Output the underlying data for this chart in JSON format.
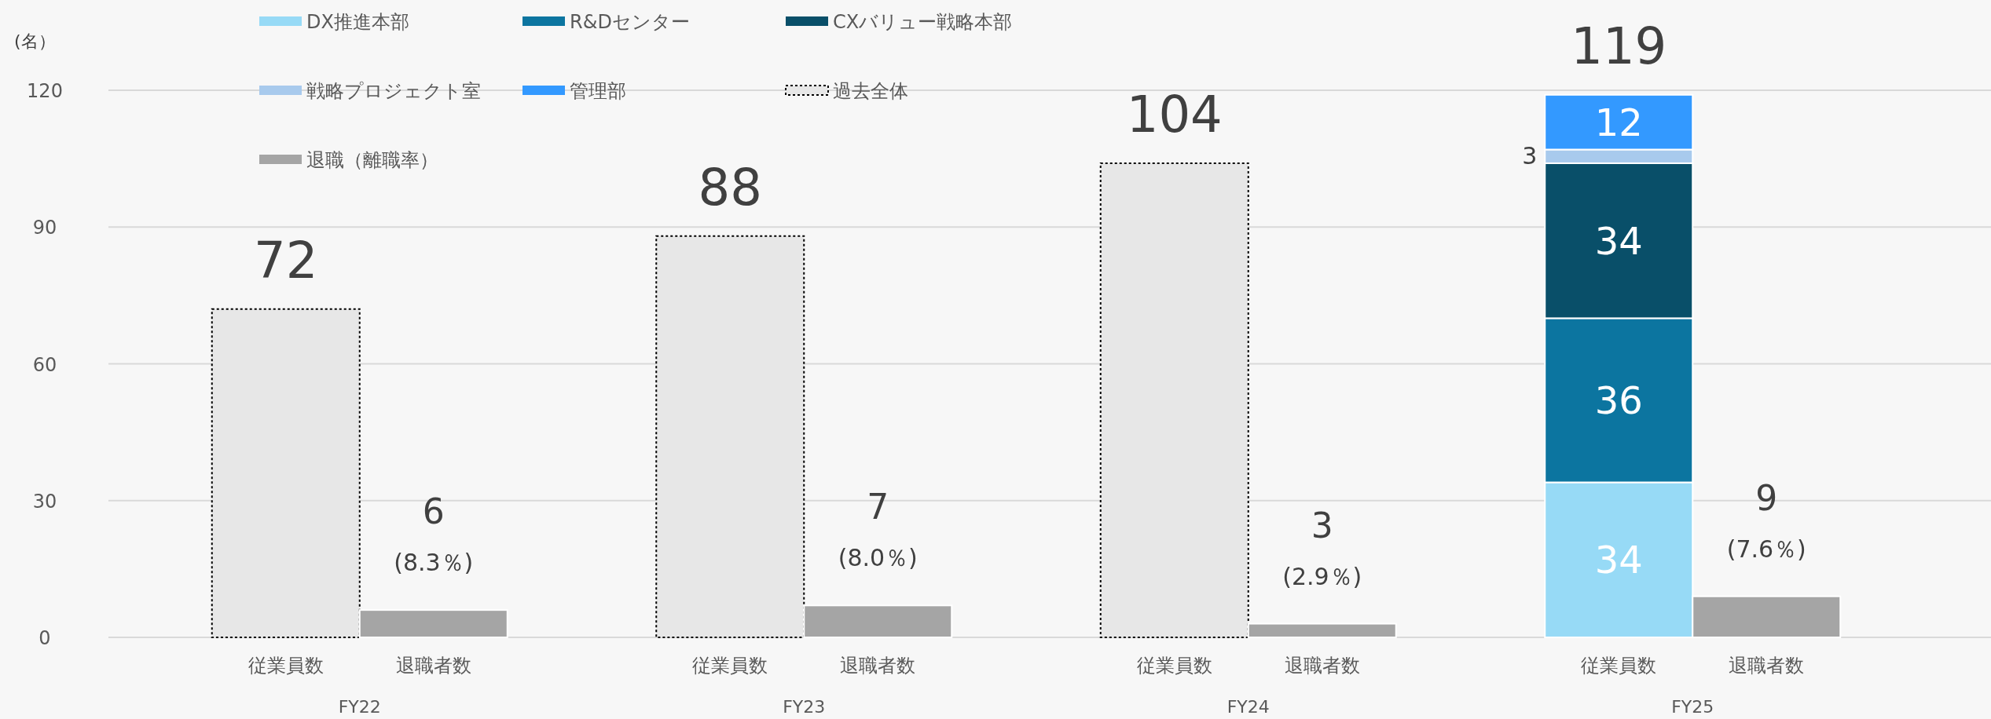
{
  "chart_data": {
    "type": "bar",
    "stacked": true,
    "ylabel": "(名）",
    "categories": [
      "従業員数",
      "退職者数",
      "従業員数",
      "退職者数",
      "従業員数",
      "退職者数",
      "従業員数",
      "退職者数"
    ],
    "series": [
      {
        "name": "DX推進本部",
        "color": "#97daf6",
        "values": [
          null,
          null,
          null,
          null,
          null,
          null,
          34,
          null
        ],
        "value_labels": [
          null,
          null,
          null,
          null,
          null,
          null,
          "34",
          null
        ]
      },
      {
        "name": "R&Dセンター",
        "color": "#0c75a0",
        "values": [
          null,
          null,
          null,
          null,
          null,
          null,
          36,
          null
        ],
        "value_labels": [
          null,
          null,
          null,
          null,
          null,
          null,
          "36",
          null
        ]
      },
      {
        "name": "CXバリュー戦略本部",
        "color": "#094f69",
        "values": [
          null,
          null,
          null,
          null,
          null,
          null,
          34,
          null
        ],
        "value_labels": [
          null,
          null,
          null,
          null,
          null,
          null,
          "34",
          null
        ]
      },
      {
        "name": "戦略プロジェクト室",
        "color": "#a8caed",
        "values": [
          null,
          null,
          null,
          null,
          null,
          null,
          3,
          null
        ],
        "value_labels": [
          null,
          null,
          null,
          null,
          null,
          null,
          "3",
          null
        ]
      },
      {
        "name": "管理部",
        "color": "#3399ff",
        "values": [
          null,
          null,
          null,
          null,
          null,
          null,
          12,
          null
        ],
        "value_labels": [
          null,
          null,
          null,
          null,
          null,
          null,
          "12",
          null
        ]
      },
      {
        "name": "過去全体",
        "color": "#e7e7e7",
        "line_style": "dotted",
        "values": [
          72,
          null,
          88,
          null,
          104,
          null,
          null,
          null
        ]
      },
      {
        "name": "退職（離職率）",
        "color": "#a5a5a5",
        "values": [
          null,
          6,
          null,
          7,
          null,
          3,
          null,
          9
        ],
        "value_labels": [
          null,
          "6 (8.3％)",
          null,
          "7 (8.0％)",
          null,
          "3 (2.9％)",
          null,
          "9 (7.6％)"
        ]
      }
    ],
    "totals": [
      "72",
      null,
      "88",
      null,
      "104",
      null,
      "119",
      null
    ],
    "annotations": [
      "FY22",
      "FY23",
      "FY24",
      "FY25"
    ],
    "ylim": [
      0,
      120
    ],
    "yticks": [
      0,
      30,
      60,
      90,
      120
    ],
    "grid": "y",
    "legend": "top"
  }
}
